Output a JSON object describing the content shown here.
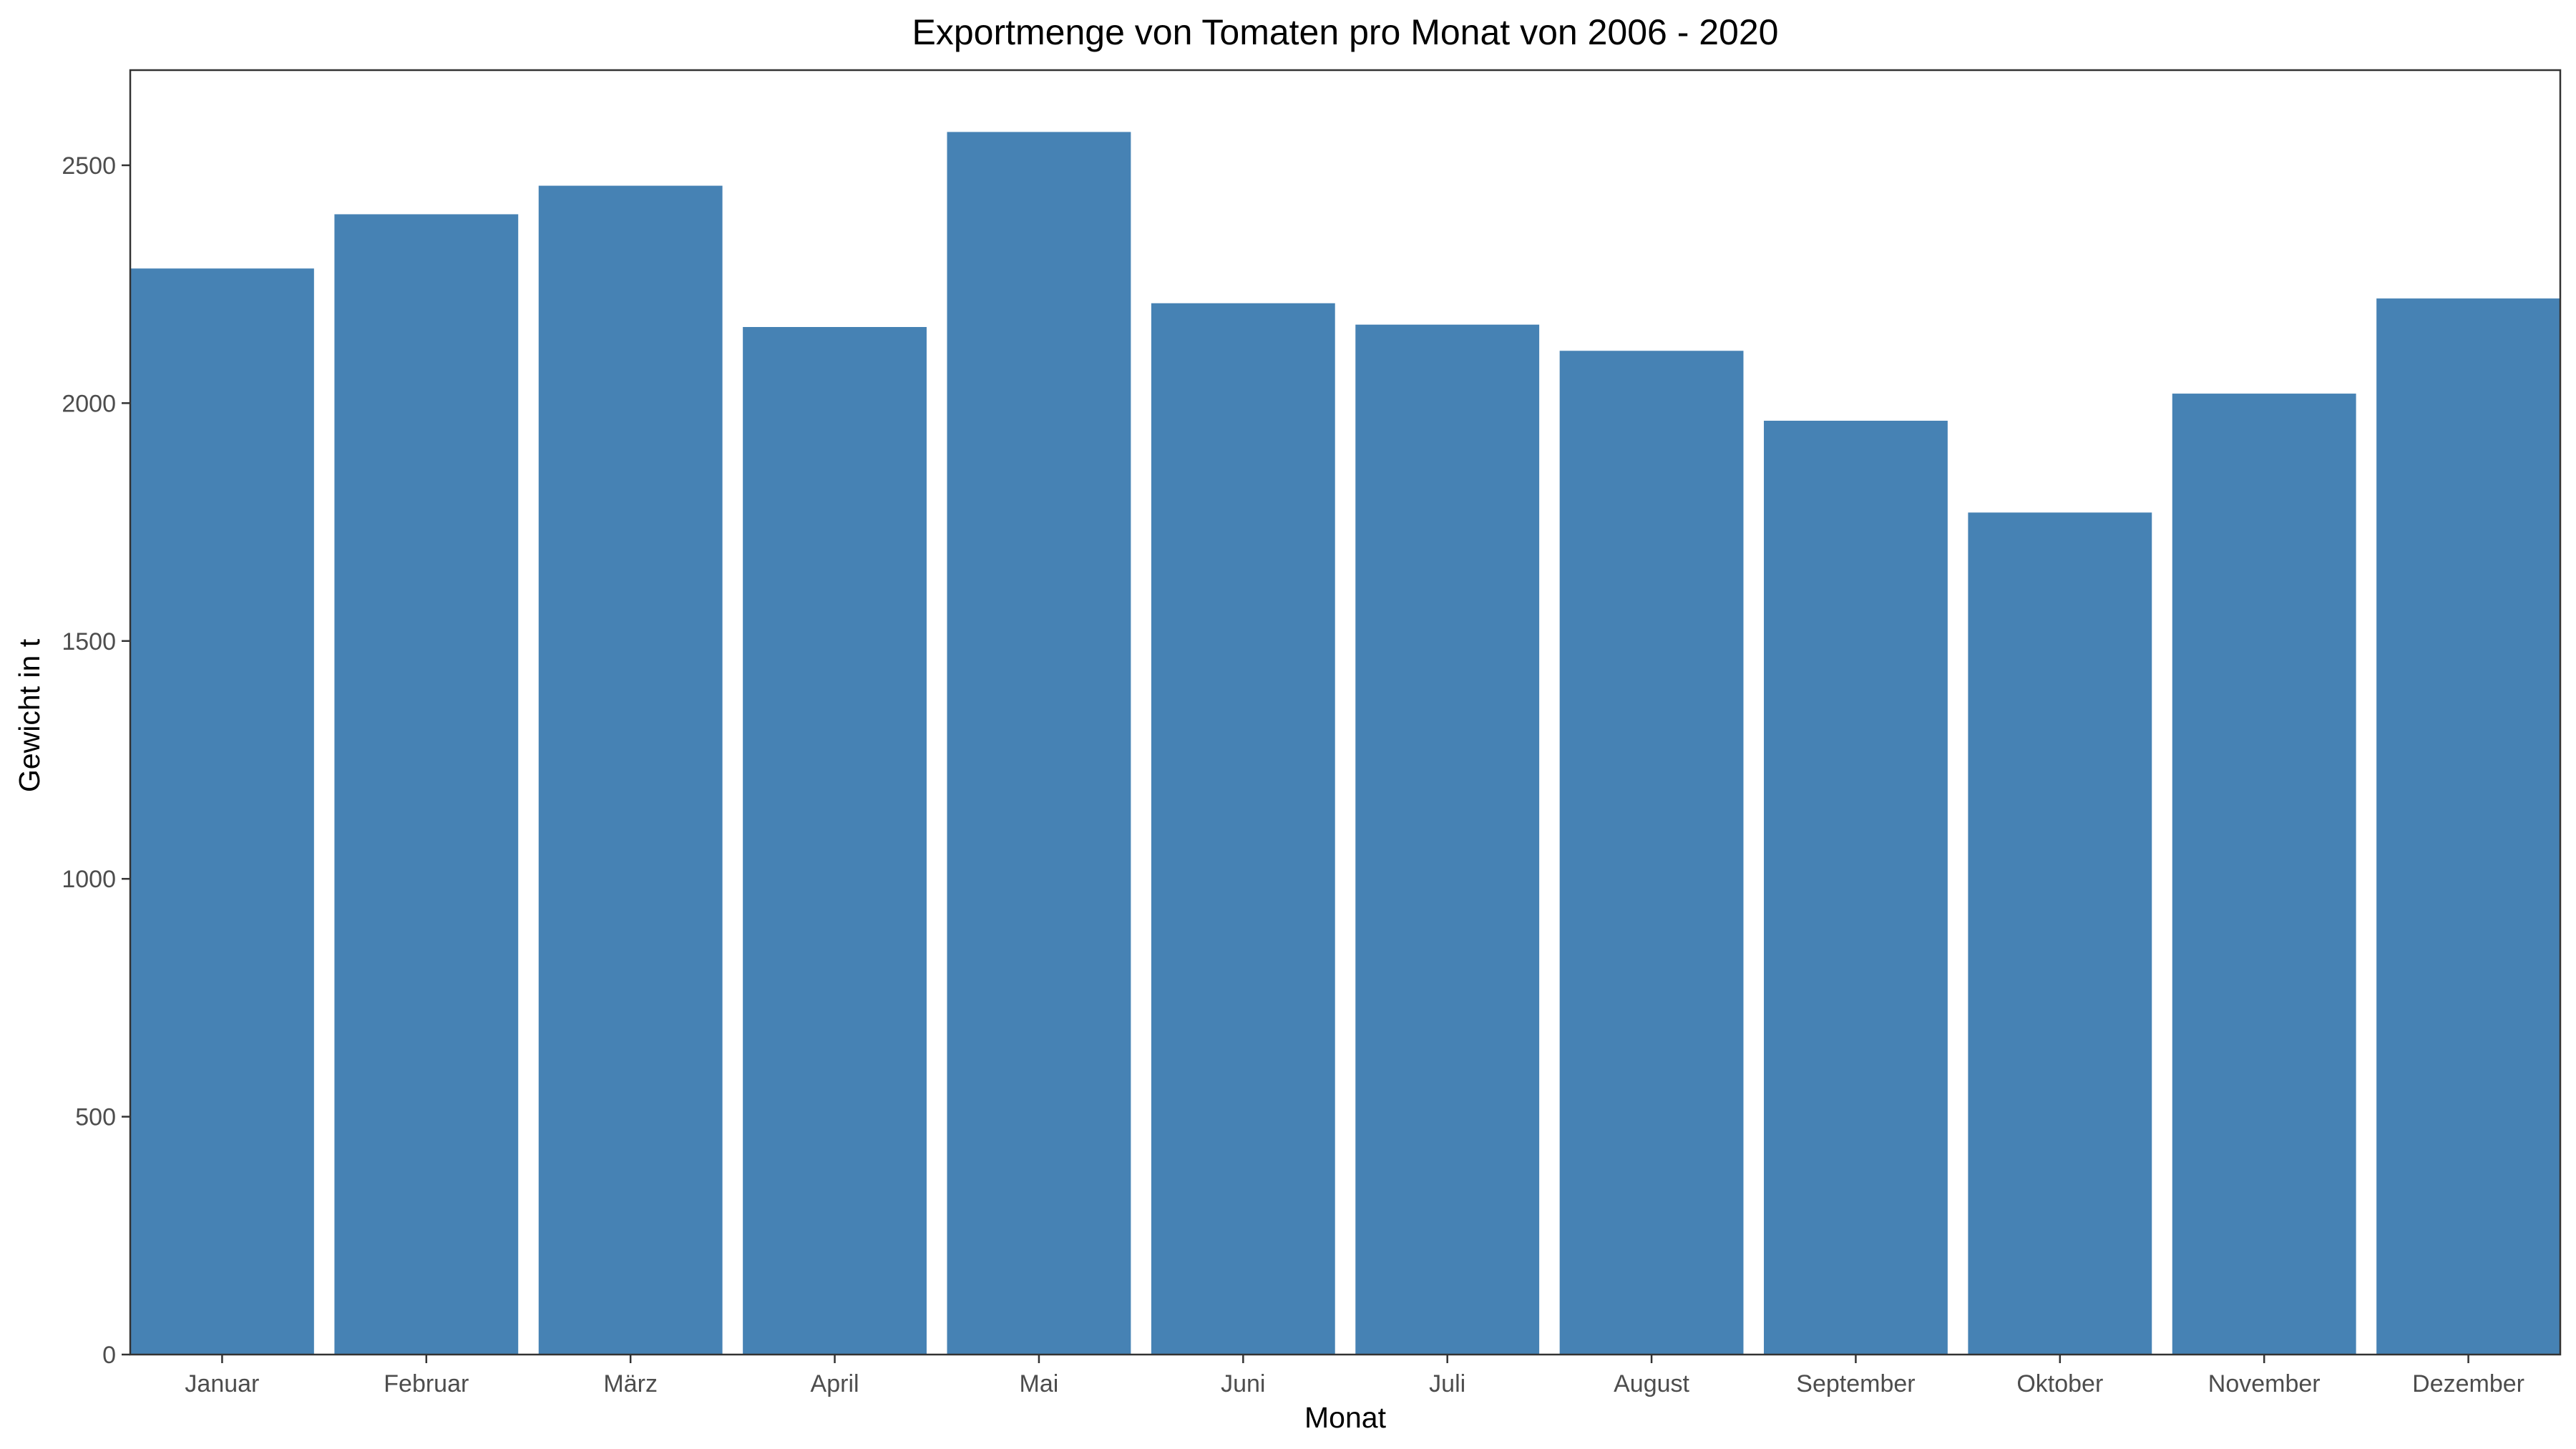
{
  "chart_data": {
    "type": "bar",
    "title": "Exportmenge von Tomaten pro Monat von 2006 - 2020",
    "xlabel": "Monat",
    "ylabel": "Gewicht in t",
    "categories": [
      "Januar",
      "Februar",
      "März",
      "April",
      "Mai",
      "Juni",
      "Juli",
      "August",
      "September",
      "Oktober",
      "November",
      "Dezember"
    ],
    "values": [
      2283,
      2397,
      2457,
      2160,
      2570,
      2210,
      2165,
      2110,
      1963,
      1770,
      2020,
      2220
    ],
    "ylim": [
      0,
      2700
    ],
    "yticks": [
      0,
      500,
      1000,
      1500,
      2000,
      2500
    ],
    "grid": false,
    "legend": "none",
    "bar_color": "#4682B4"
  }
}
